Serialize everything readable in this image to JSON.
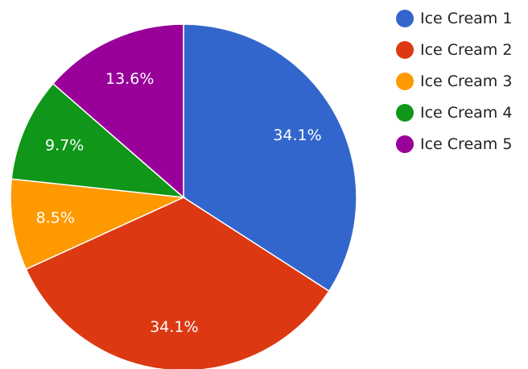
{
  "chart_data": {
    "type": "pie",
    "title": "",
    "legend_position": "right",
    "slices": [
      {
        "label": "Ice Cream 1",
        "value": 34.1,
        "display": "34.1%",
        "color": "#3366cc"
      },
      {
        "label": "Ice Cream 2",
        "value": 34.1,
        "display": "34.1%",
        "color": "#dc3912"
      },
      {
        "label": "Ice Cream 3",
        "value": 8.5,
        "display": "8.5%",
        "color": "#ff9900"
      },
      {
        "label": "Ice Cream 4",
        "value": 9.7,
        "display": "9.7%",
        "color": "#109618"
      },
      {
        "label": "Ice Cream 5",
        "value": 13.6,
        "display": "13.6%",
        "color": "#990099"
      }
    ]
  }
}
